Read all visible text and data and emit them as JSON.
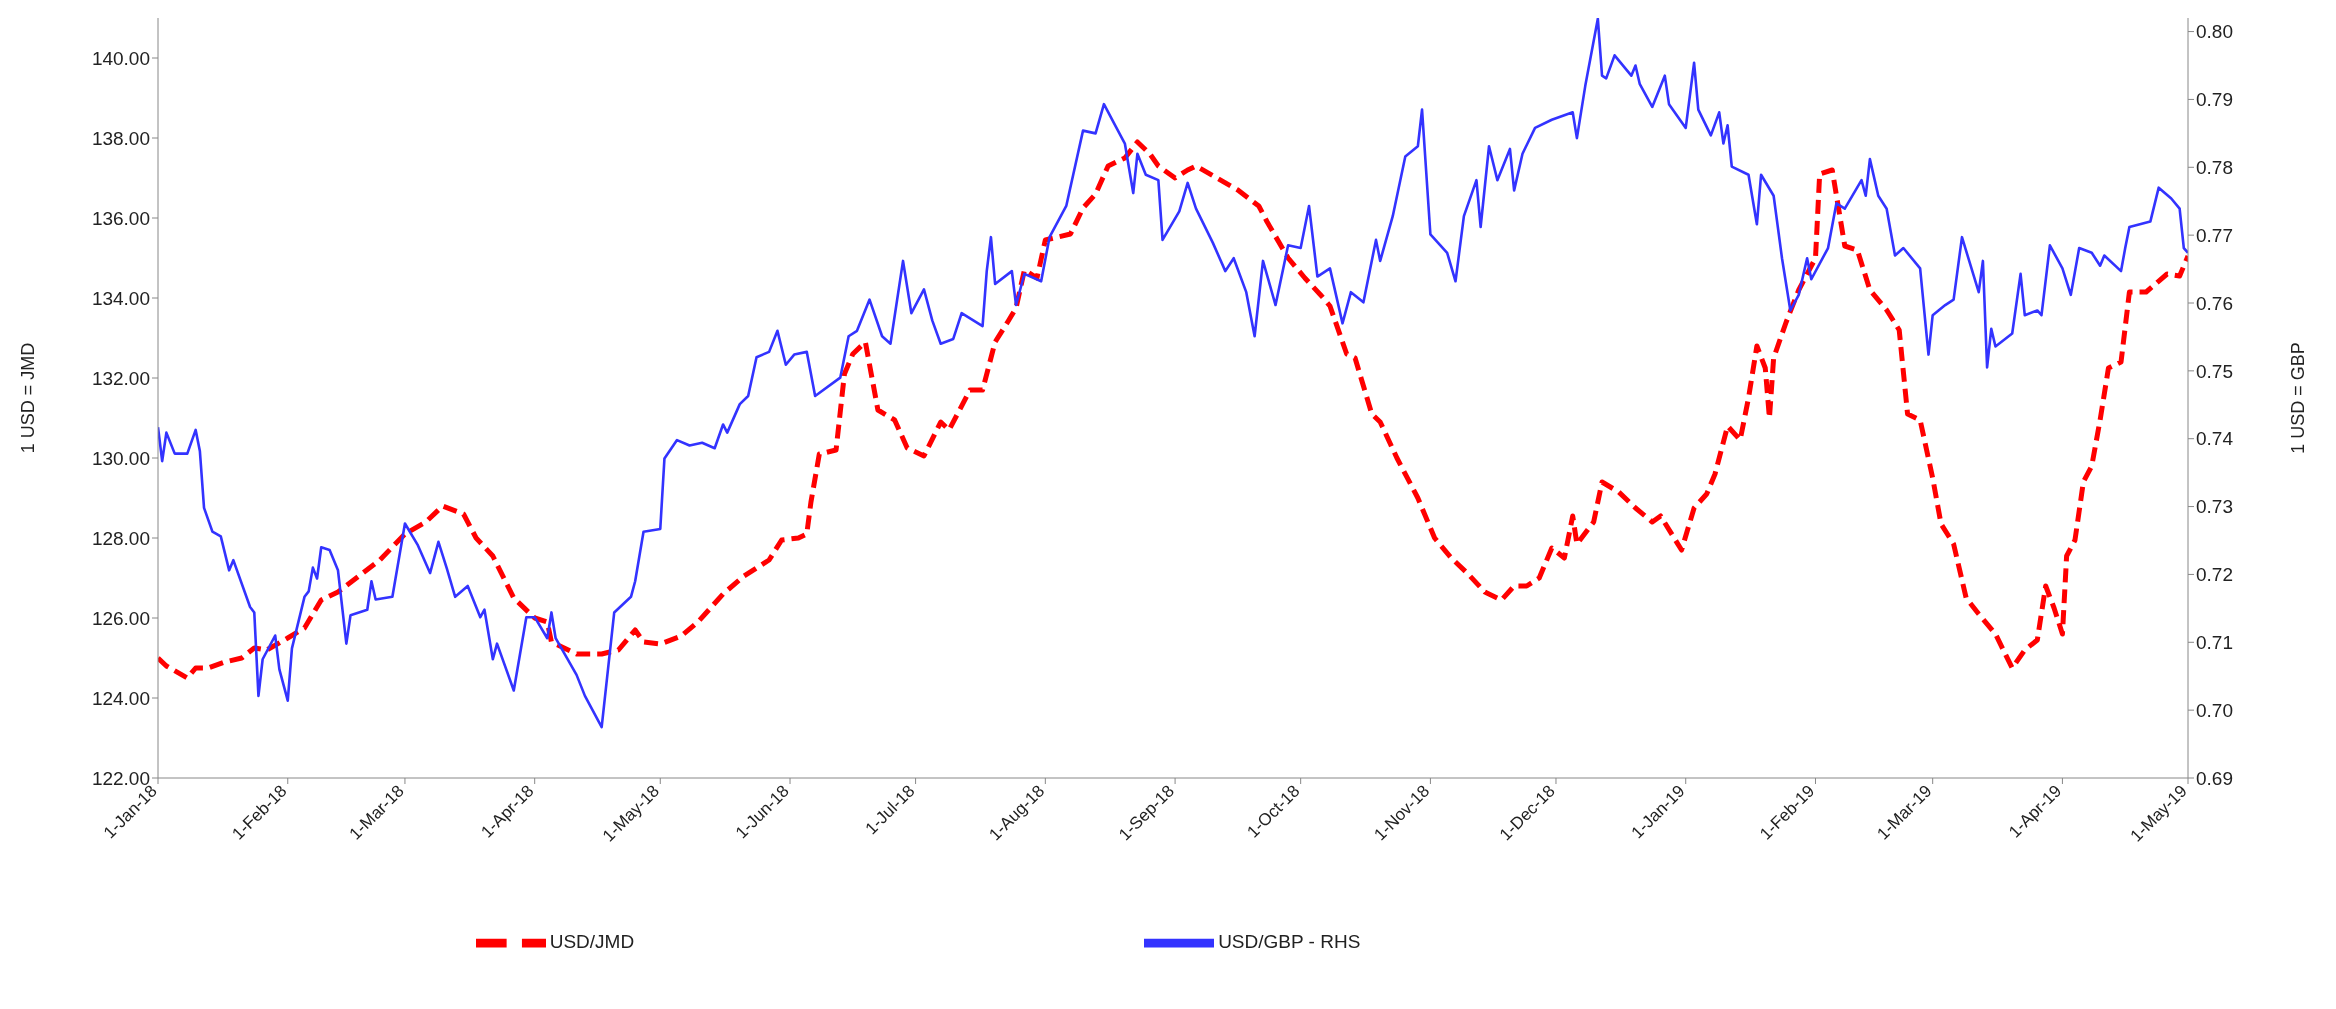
{
  "chart_data": {
    "type": "line",
    "ylabel": "1 USD = JMD",
    "y2label": "1 USD = GBP",
    "legend": "bottom",
    "marker": "none",
    "xlim": [
      "2018-01-01",
      "2019-05-01"
    ],
    "xticks": [
      {
        "value": "2018-01-01",
        "label": "1-Jan-18"
      },
      {
        "value": "2018-02-01",
        "label": "1-Feb-18"
      },
      {
        "value": "2018-03-01",
        "label": "1-Mar-18"
      },
      {
        "value": "2018-04-01",
        "label": "1-Apr-18"
      },
      {
        "value": "2018-05-01",
        "label": "1-May-18"
      },
      {
        "value": "2018-06-01",
        "label": "1-Jun-18"
      },
      {
        "value": "2018-07-01",
        "label": "1-Jul-18"
      },
      {
        "value": "2018-08-01",
        "label": "1-Aug-18"
      },
      {
        "value": "2018-09-01",
        "label": "1-Sep-18"
      },
      {
        "value": "2018-10-01",
        "label": "1-Oct-18"
      },
      {
        "value": "2018-11-01",
        "label": "1-Nov-18"
      },
      {
        "value": "2018-12-01",
        "label": "1-Dec-18"
      },
      {
        "value": "2019-01-01",
        "label": "1-Jan-19"
      },
      {
        "value": "2019-02-01",
        "label": "1-Feb-19"
      },
      {
        "value": "2019-03-01",
        "label": "1-Mar-19"
      },
      {
        "value": "2019-04-01",
        "label": "1-Apr-19"
      },
      {
        "value": "2019-05-01",
        "label": "1-May-19"
      }
    ],
    "ylim": [
      122,
      141
    ],
    "yticks": [
      {
        "value": 122,
        "label": "122.00"
      },
      {
        "value": 124,
        "label": "124.00"
      },
      {
        "value": 126,
        "label": "126.00"
      },
      {
        "value": 128,
        "label": "128.00"
      },
      {
        "value": 130,
        "label": "130.00"
      },
      {
        "value": 132,
        "label": "132.00"
      },
      {
        "value": 134,
        "label": "134.00"
      },
      {
        "value": 136,
        "label": "136.00"
      },
      {
        "value": 138,
        "label": "138.00"
      },
      {
        "value": 140,
        "label": "140.00"
      }
    ],
    "y2lim": [
      0.69,
      0.802
    ],
    "y2ticks": [
      0.69,
      {
        "value": 0.7,
        "label": "0.70"
      },
      0.71,
      0.72,
      0.73,
      0.74,
      0.75,
      0.76,
      0.77,
      0.78,
      0.79,
      {
        "value": 0.8,
        "label": "0.80"
      }
    ],
    "series": [
      {
        "name": "USD/JMD",
        "color": "#ff0000",
        "line_style": "dashed",
        "x": [
          "2018-01-01",
          "2018-01-03",
          "2018-01-08",
          "2018-01-10",
          "2018-01-13",
          "2018-01-17",
          "2018-01-21",
          "2018-01-24",
          "2018-01-27",
          "2018-02-01",
          "2018-02-05",
          "2018-02-09",
          "2018-02-13",
          "2018-02-18",
          "2018-02-23",
          "2018-03-01",
          "2018-03-06",
          "2018-03-10",
          "2018-03-15",
          "2018-03-18",
          "2018-03-22",
          "2018-03-27",
          "2018-04-01",
          "2018-04-04",
          "2018-04-05",
          "2018-04-11",
          "2018-04-17",
          "2018-04-21",
          "2018-04-25",
          "2018-04-27",
          "2018-05-01",
          "2018-05-06",
          "2018-05-10",
          "2018-05-16",
          "2018-05-21",
          "2018-05-27",
          "2018-05-30",
          "2018-06-03",
          "2018-06-05",
          "2018-06-06",
          "2018-06-08",
          "2018-06-12",
          "2018-06-14",
          "2018-06-16",
          "2018-06-19",
          "2018-06-22",
          "2018-06-26",
          "2018-06-29",
          "2018-07-03",
          "2018-07-07",
          "2018-07-09",
          "2018-07-14",
          "2018-07-17",
          "2018-07-20",
          "2018-07-23",
          "2018-07-25",
          "2018-07-27",
          "2018-07-30",
          "2018-08-01",
          "2018-08-07",
          "2018-08-10",
          "2018-08-13",
          "2018-08-16",
          "2018-08-20",
          "2018-08-23",
          "2018-08-26",
          "2018-08-28",
          "2018-09-01",
          "2018-09-04",
          "2018-09-06",
          "2018-09-11",
          "2018-09-16",
          "2018-09-21",
          "2018-09-23",
          "2018-09-28",
          "2018-10-02",
          "2018-10-06",
          "2018-10-08",
          "2018-10-12",
          "2018-10-14",
          "2018-10-18",
          "2018-10-20",
          "2018-10-24",
          "2018-10-29",
          "2018-11-02",
          "2018-11-06",
          "2018-11-10",
          "2018-11-14",
          "2018-11-18",
          "2018-11-21",
          "2018-11-24",
          "2018-11-27",
          "2018-11-30",
          "2018-12-03",
          "2018-12-05",
          "2018-12-06",
          "2018-12-10",
          "2018-12-12",
          "2018-12-16",
          "2018-12-20",
          "2018-12-24",
          "2018-12-26",
          "2018-12-31",
          "2019-01-03",
          "2019-01-06",
          "2019-01-08",
          "2019-01-11",
          "2019-01-14",
          "2019-01-16",
          "2019-01-18",
          "2019-01-20",
          "2019-01-21",
          "2019-01-22",
          "2019-01-25",
          "2019-01-28",
          "2019-02-01",
          "2019-02-02",
          "2019-02-05",
          "2019-02-08",
          "2019-02-11",
          "2019-02-14",
          "2019-02-18",
          "2019-02-21",
          "2019-02-23",
          "2019-02-26",
          "2019-03-01",
          "2019-03-03",
          "2019-03-06",
          "2019-03-09",
          "2019-03-12",
          "2019-03-16",
          "2019-03-20",
          "2019-03-23",
          "2019-03-26",
          "2019-03-28",
          "2019-03-30",
          "2019-04-01",
          "2019-04-02",
          "2019-04-04",
          "2019-04-06",
          "2019-04-08",
          "2019-04-10",
          "2019-04-12",
          "2019-04-15",
          "2019-04-17",
          "2019-04-21",
          "2019-04-26",
          "2019-04-29",
          "2019-05-01"
        ],
        "values": [
          125.0,
          124.8,
          124.5,
          124.75,
          124.75,
          124.9,
          125.0,
          125.25,
          125.2,
          125.5,
          125.75,
          126.45,
          126.65,
          127.05,
          127.45,
          128.1,
          128.4,
          128.8,
          128.6,
          128.0,
          127.55,
          126.5,
          126.0,
          125.9,
          125.4,
          125.1,
          125.1,
          125.2,
          125.7,
          125.4,
          125.35,
          125.55,
          125.9,
          126.6,
          127.05,
          127.45,
          127.95,
          128.0,
          128.1,
          128.9,
          130.1,
          130.2,
          132.1,
          132.6,
          132.9,
          131.2,
          130.95,
          130.25,
          130.05,
          130.9,
          130.7,
          131.7,
          131.7,
          132.9,
          133.4,
          133.75,
          134.7,
          134.5,
          135.45,
          135.6,
          136.25,
          136.6,
          137.3,
          137.5,
          137.9,
          137.6,
          137.3,
          137.0,
          137.2,
          137.3,
          137.0,
          136.7,
          136.3,
          135.9,
          135.0,
          134.5,
          134.05,
          133.8,
          132.6,
          132.5,
          131.1,
          130.9,
          130.0,
          129.0,
          128.0,
          127.5,
          127.1,
          126.65,
          126.45,
          126.8,
          126.8,
          127.0,
          127.75,
          127.5,
          128.55,
          127.85,
          128.4,
          129.4,
          129.15,
          128.75,
          128.4,
          128.55,
          127.7,
          128.75,
          129.1,
          129.6,
          130.8,
          130.45,
          131.5,
          132.8,
          132.25,
          131.0,
          132.5,
          133.4,
          134.2,
          135.0,
          137.1,
          137.2,
          135.3,
          135.2,
          134.2,
          133.7,
          133.2,
          131.1,
          130.95,
          129.5,
          128.35,
          127.85,
          126.5,
          126.1,
          125.6,
          124.75,
          125.2,
          125.45,
          126.8,
          126.25,
          125.6,
          127.55,
          127.95,
          129.4,
          129.8,
          130.95,
          132.25,
          132.4,
          134.15,
          134.15,
          134.6,
          134.55,
          135.05
        ]
      },
      {
        "name": "USD/GBP - RHS",
        "color": "#3333ff",
        "line_style": "solid",
        "axis": "y2",
        "x": [
          "2018-01-01",
          "2018-01-02",
          "2018-01-03",
          "2018-01-05",
          "2018-01-08",
          "2018-01-10",
          "2018-01-11",
          "2018-01-12",
          "2018-01-14",
          "2018-01-16",
          "2018-01-18",
          "2018-01-19",
          "2018-01-23",
          "2018-01-24",
          "2018-01-25",
          "2018-01-26",
          "2018-01-29",
          "2018-01-30",
          "2018-02-01",
          "2018-02-02",
          "2018-02-05",
          "2018-02-06",
          "2018-02-07",
          "2018-02-08",
          "2018-02-09",
          "2018-02-11",
          "2018-02-13",
          "2018-02-15",
          "2018-02-16",
          "2018-02-20",
          "2018-02-21",
          "2018-02-22",
          "2018-02-26",
          "2018-03-01",
          "2018-03-04",
          "2018-03-07",
          "2018-03-09",
          "2018-03-11",
          "2018-03-13",
          "2018-03-16",
          "2018-03-19",
          "2018-03-20",
          "2018-03-22",
          "2018-03-23",
          "2018-03-27",
          "2018-03-30",
          "2018-04-01",
          "2018-04-04",
          "2018-04-05",
          "2018-04-06",
          "2018-04-11",
          "2018-04-13",
          "2018-04-17",
          "2018-04-20",
          "2018-04-24",
          "2018-04-25",
          "2018-04-27",
          "2018-05-01",
          "2018-05-02",
          "2018-05-05",
          "2018-05-08",
          "2018-05-11",
          "2018-05-14",
          "2018-05-16",
          "2018-05-17",
          "2018-05-20",
          "2018-05-22",
          "2018-05-24",
          "2018-05-27",
          "2018-05-29",
          "2018-05-31",
          "2018-06-02",
          "2018-06-05",
          "2018-06-07",
          "2018-06-13",
          "2018-06-15",
          "2018-06-17",
          "2018-06-20",
          "2018-06-23",
          "2018-06-25",
          "2018-06-28",
          "2018-06-30",
          "2018-07-03",
          "2018-07-05",
          "2018-07-07",
          "2018-07-10",
          "2018-07-12",
          "2018-07-17",
          "2018-07-18",
          "2018-07-19",
          "2018-07-20",
          "2018-07-24",
          "2018-07-25",
          "2018-07-27",
          "2018-07-31",
          "2018-08-02",
          "2018-08-06",
          "2018-08-10",
          "2018-08-13",
          "2018-08-15",
          "2018-08-18",
          "2018-08-20",
          "2018-08-22",
          "2018-08-23",
          "2018-08-25",
          "2018-08-28",
          "2018-08-29",
          "2018-09-02",
          "2018-09-04",
          "2018-09-06",
          "2018-09-10",
          "2018-09-13",
          "2018-09-15",
          "2018-09-18",
          "2018-09-20",
          "2018-09-22",
          "2018-09-25",
          "2018-09-28",
          "2018-10-01",
          "2018-10-03",
          "2018-10-05",
          "2018-10-08",
          "2018-10-11",
          "2018-10-13",
          "2018-10-16",
          "2018-10-19",
          "2018-10-20",
          "2018-10-23",
          "2018-10-26",
          "2018-10-29",
          "2018-10-30",
          "2018-11-01",
          "2018-11-05",
          "2018-11-07",
          "2018-11-09",
          "2018-11-12",
          "2018-11-13",
          "2018-11-15",
          "2018-11-17",
          "2018-11-20",
          "2018-11-21",
          "2018-11-23",
          "2018-11-26",
          "2018-11-30",
          "2018-12-05",
          "2018-12-06",
          "2018-12-08",
          "2018-12-11",
          "2018-12-12",
          "2018-12-13",
          "2018-12-15",
          "2018-12-19",
          "2018-12-20",
          "2018-12-21",
          "2018-12-24",
          "2018-12-27",
          "2018-12-28",
          "2019-01-01",
          "2019-01-03",
          "2019-01-04",
          "2019-01-07",
          "2019-01-09",
          "2019-01-10",
          "2019-01-11",
          "2019-01-12",
          "2019-01-16",
          "2019-01-18",
          "2019-01-19",
          "2019-01-22",
          "2019-01-24",
          "2019-01-26",
          "2019-01-28",
          "2019-01-30",
          "2019-01-31",
          "2019-02-04",
          "2019-02-06",
          "2019-02-08",
          "2019-02-12",
          "2019-02-13",
          "2019-02-14",
          "2019-02-16",
          "2019-02-18",
          "2019-02-20",
          "2019-02-22",
          "2019-02-26",
          "2019-02-28",
          "2019-03-01",
          "2019-03-04",
          "2019-03-06",
          "2019-03-08",
          "2019-03-12",
          "2019-03-13",
          "2019-03-14",
          "2019-03-15",
          "2019-03-16",
          "2019-03-20",
          "2019-03-22",
          "2019-03-23",
          "2019-03-26",
          "2019-03-27",
          "2019-03-29",
          "2019-04-01",
          "2019-04-03",
          "2019-04-05",
          "2019-04-08",
          "2019-04-10",
          "2019-04-11",
          "2019-04-15",
          "2019-04-16",
          "2019-04-17",
          "2019-04-22",
          "2019-04-24",
          "2019-04-27",
          "2019-04-29",
          "2019-04-30",
          "2019-05-01"
        ],
        "values": [
          0.7417,
          0.7367,
          0.7409,
          0.7378,
          0.7378,
          0.7413,
          0.7382,
          0.7298,
          0.7263,
          0.7256,
          0.7206,
          0.7221,
          0.7152,
          0.7144,
          0.7021,
          0.7075,
          0.711,
          0.706,
          0.7014,
          0.7091,
          0.7167,
          0.7175,
          0.721,
          0.7194,
          0.724,
          0.7236,
          0.7206,
          0.7098,
          0.714,
          0.7148,
          0.719,
          0.7163,
          0.7167,
          0.7275,
          0.7244,
          0.7202,
          0.7248,
          0.7209,
          0.7167,
          0.7183,
          0.7137,
          0.7148,
          0.7075,
          0.7098,
          0.7029,
          0.7137,
          0.7137,
          0.7106,
          0.7144,
          0.7106,
          0.7052,
          0.7021,
          0.6975,
          0.7144,
          0.7167,
          0.719,
          0.7263,
          0.7267,
          0.7371,
          0.7398,
          0.739,
          0.7394,
          0.7386,
          0.7421,
          0.7409,
          0.7451,
          0.7463,
          0.752,
          0.7528,
          0.7559,
          0.7509,
          0.7524,
          0.7528,
          0.7463,
          0.749,
          0.7551,
          0.7559,
          0.7605,
          0.7551,
          0.754,
          0.7662,
          0.7585,
          0.762,
          0.7574,
          0.754,
          0.7547,
          0.7585,
          0.7566,
          0.7647,
          0.7697,
          0.7628,
          0.7647,
          0.7597,
          0.7643,
          0.7632,
          0.7697,
          0.7743,
          0.7854,
          0.785,
          0.7893,
          0.7858,
          0.7835,
          0.7762,
          0.782,
          0.7789,
          0.7781,
          0.7693,
          0.7735,
          0.7777,
          0.7739,
          0.7689,
          0.7647,
          0.7666,
          0.7616,
          0.7551,
          0.7662,
          0.7597,
          0.7685,
          0.7681,
          0.7743,
          0.7639,
          0.7651,
          0.757,
          0.7616,
          0.7601,
          0.7693,
          0.7662,
          0.7728,
          0.7816,
          0.7831,
          0.7885,
          0.7701,
          0.7674,
          0.7632,
          0.7728,
          0.7781,
          0.7712,
          0.7831,
          0.7781,
          0.7827,
          0.7766,
          0.782,
          0.7858,
          0.787,
          0.7881,
          0.7843,
          0.792,
          0.8019,
          0.7935,
          0.7931,
          0.7965,
          0.7935,
          0.795,
          0.7923,
          0.7889,
          0.7935,
          0.7893,
          0.7858,
          0.7954,
          0.7885,
          0.7847,
          0.7881,
          0.7835,
          0.7862,
          0.7801,
          0.7789,
          0.7716,
          0.7789,
          0.7758,
          0.7666,
          0.7589,
          0.7612,
          0.7666,
          0.7635,
          0.7681,
          0.7747,
          0.7739,
          0.7781,
          0.7758,
          0.7812,
          0.7758,
          0.7739,
          0.767,
          0.7681,
          0.7651,
          0.7524,
          0.7582,
          0.7597,
          0.7605,
          0.7697,
          0.7616,
          0.7662,
          0.7505,
          0.7562,
          0.7536,
          0.7555,
          0.7643,
          0.7582,
          0.7589,
          0.7582,
          0.7685,
          0.7651,
          0.7612,
          0.7681,
          0.7674,
          0.7655,
          0.767,
          0.7647,
          0.7681,
          0.7712,
          0.772,
          0.777,
          0.7754,
          0.7739,
          0.7681,
          0.7674
        ]
      }
    ]
  }
}
